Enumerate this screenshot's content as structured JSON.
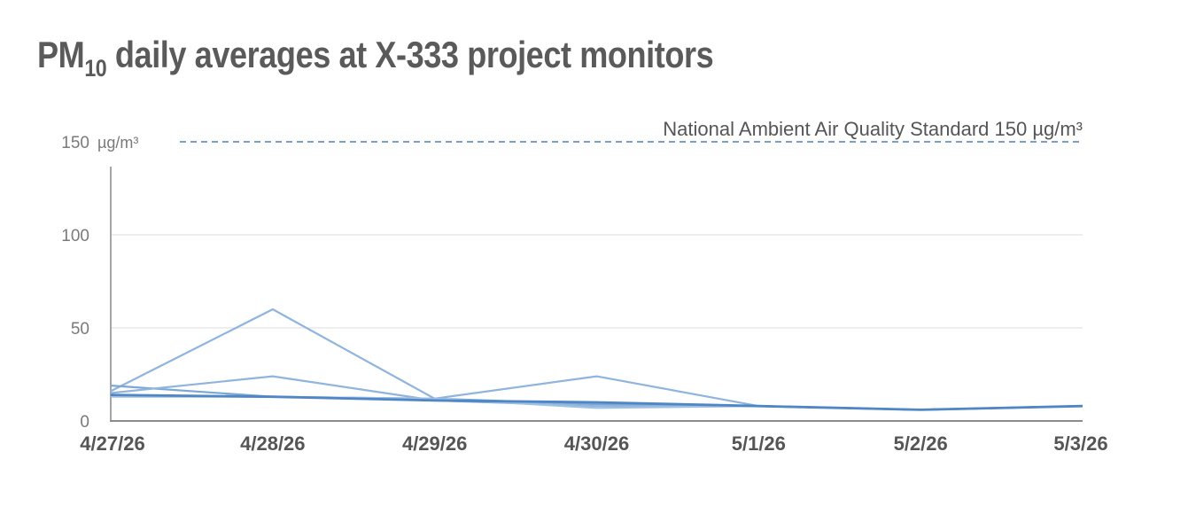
{
  "title": {
    "main": "PM",
    "subscript": "10",
    "rest": " daily averages at X-333 project monitors"
  },
  "chart_data": {
    "type": "line",
    "title": "PM10 daily averages at X-333 project monitors",
    "xlabel": "",
    "ylabel": "",
    "y_unit": "µg/m³",
    "ylim": [
      0,
      150
    ],
    "yticks": [
      0,
      50,
      100,
      150
    ],
    "grid": true,
    "legend": "none",
    "categories": [
      "4/27/26",
      "4/28/26",
      "4/29/26",
      "4/30/26",
      "5/1/26",
      "5/2/26",
      "5/3/26"
    ],
    "series": [
      {
        "values": [
          16,
          60,
          12,
          24,
          8,
          6,
          8
        ],
        "color": "#8fb4dd"
      },
      {
        "values": [
          19,
          13,
          12,
          9,
          8,
          6,
          8
        ],
        "color": "#7ba7d6"
      },
      {
        "values": [
          15,
          24,
          11,
          8,
          8,
          6,
          8
        ],
        "color": "#8fb4dd"
      },
      {
        "values": [
          13,
          13,
          12,
          7,
          8,
          6,
          8
        ],
        "color": "#9fc0e4"
      },
      {
        "values": [
          14,
          13,
          11,
          10,
          8,
          6,
          8
        ],
        "color": "#4f86c6"
      }
    ],
    "reference_line": {
      "value": 150,
      "label": "National Ambient Air Quality Standard 150 µg/m³",
      "color": "#4f7fbf"
    },
    "colors": {
      "grid": "#e8e8e8",
      "axis": "#a6a6a6"
    }
  }
}
